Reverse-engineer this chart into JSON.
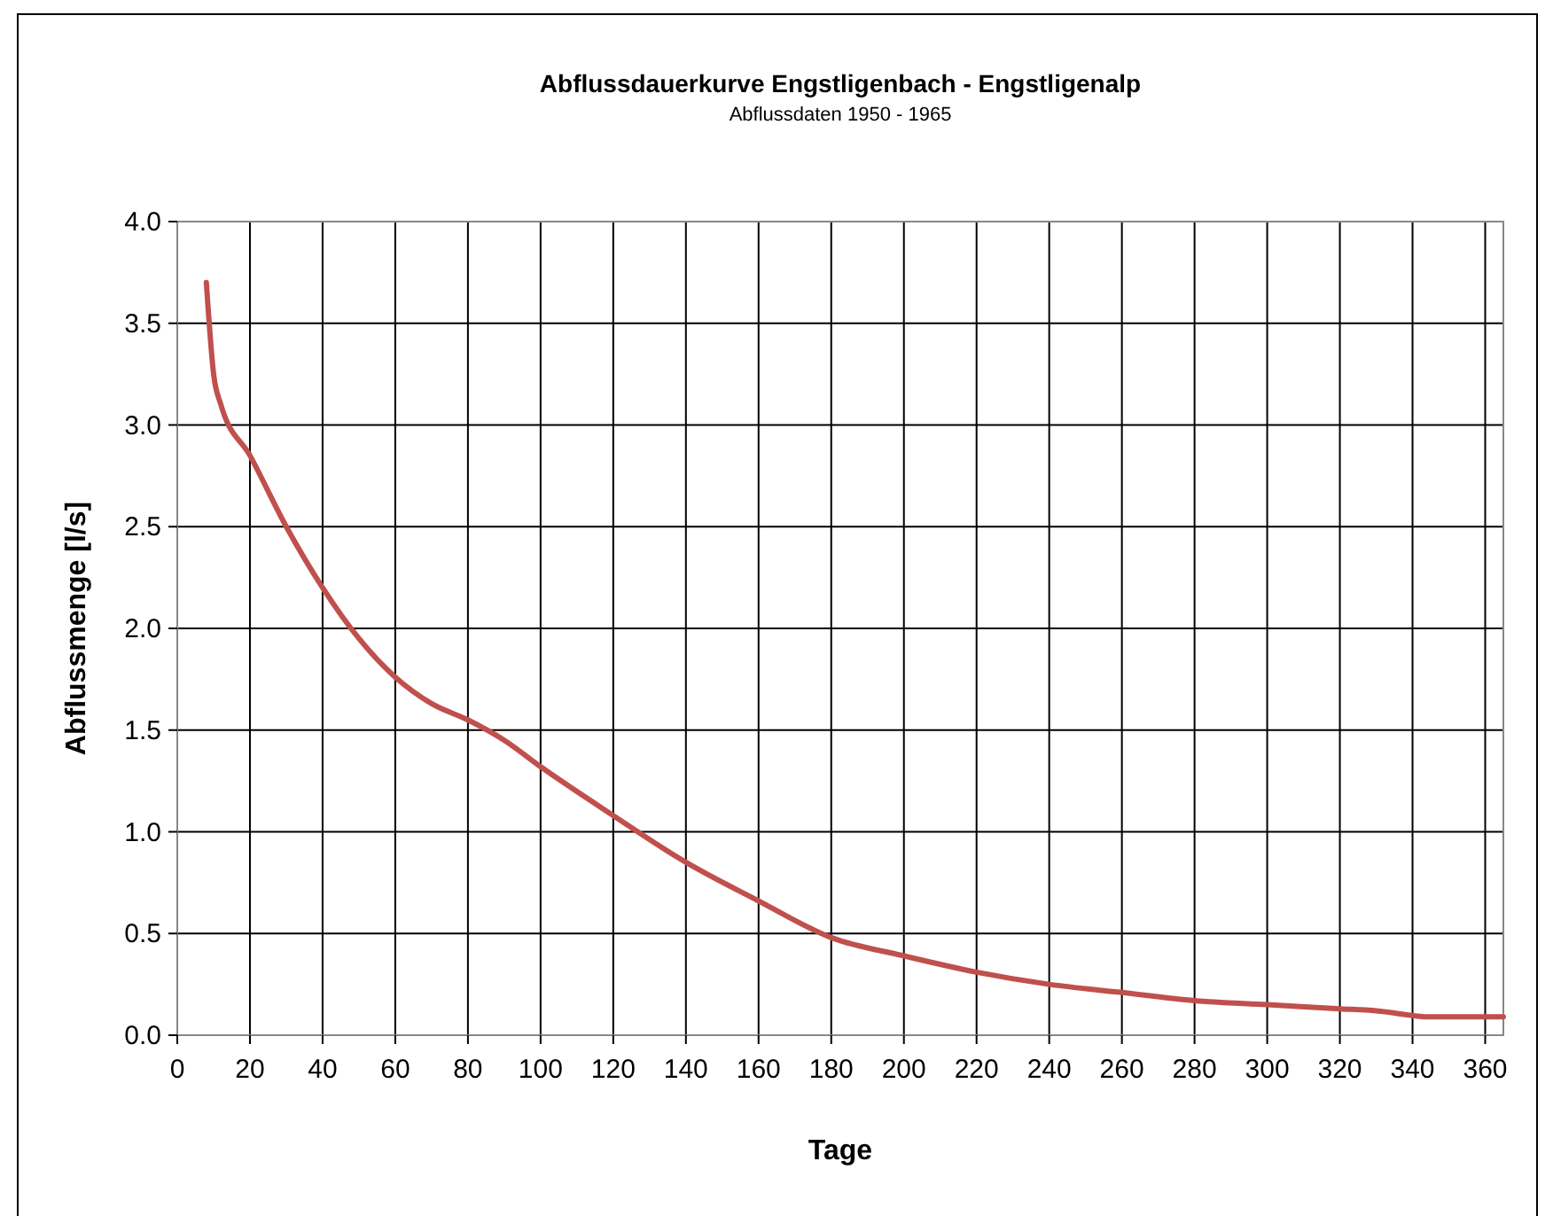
{
  "chart_data": {
    "type": "line",
    "title": "Abflussdauerkurve Engstligenbach - Engstligenalp",
    "subtitle": "Abflussdaten 1950 - 1965",
    "xlabel": "Tage",
    "ylabel": "Abflussmenge [l/s]",
    "x": [
      8,
      10,
      12,
      20,
      30,
      40,
      50,
      60,
      70,
      80,
      90,
      100,
      120,
      140,
      160,
      180,
      200,
      220,
      240,
      260,
      280,
      300,
      320,
      330,
      345,
      365
    ],
    "series": [
      {
        "color": "#c0504d",
        "values": [
          3.7,
          3.25,
          3.1,
          2.85,
          2.5,
          2.2,
          1.95,
          1.76,
          1.63,
          1.55,
          1.45,
          1.32,
          1.08,
          0.85,
          0.66,
          0.48,
          0.39,
          0.31,
          0.25,
          0.21,
          0.17,
          0.15,
          0.13,
          0.12,
          0.09,
          0.09
        ]
      }
    ],
    "xlim": [
      0,
      365
    ],
    "xticks": [
      0,
      20,
      40,
      60,
      80,
      100,
      120,
      140,
      160,
      180,
      200,
      220,
      240,
      260,
      280,
      300,
      320,
      340,
      360
    ],
    "ylim": [
      0,
      4
    ],
    "yticks": [
      {
        "value": 0,
        "label": "0.0"
      },
      {
        "value": 0.5,
        "label": "0.5"
      },
      {
        "value": 1,
        "label": "1.0"
      },
      {
        "value": 1.5,
        "label": "1.5"
      },
      {
        "value": 2,
        "label": "2.0"
      },
      {
        "value": 2.5,
        "label": "2.5"
      },
      {
        "value": 3,
        "label": "3.0"
      },
      {
        "value": 3.5,
        "label": "3.5"
      },
      {
        "value": 4,
        "label": "4.0"
      }
    ],
    "grid": true,
    "marker": "none",
    "line_style": "solid"
  }
}
